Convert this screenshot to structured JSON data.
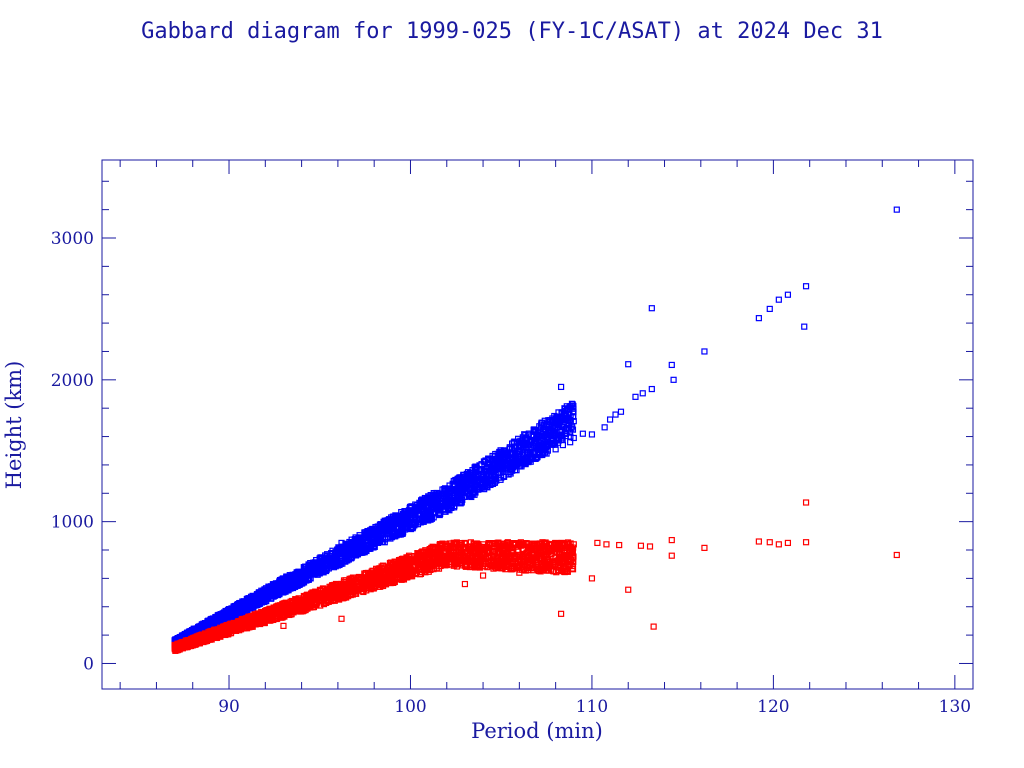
{
  "chart_data": {
    "type": "scatter",
    "title": "Gabbard diagram for 1999-025 (FY-1C/ASAT) at 2024 Dec 31",
    "xlabel": "Period (min)",
    "ylabel": "Height (km)",
    "xlim": [
      83,
      131
    ],
    "ylim": [
      -180,
      3550
    ],
    "xticks": [
      90,
      100,
      110,
      120,
      130
    ],
    "yticks": [
      0,
      1000,
      2000,
      3000
    ],
    "xtick_labels": [
      "90",
      "100",
      "110",
      "120",
      "130"
    ],
    "ytick_labels": [
      "0",
      "1000",
      "2000",
      "3000"
    ],
    "grid": false,
    "legend": "none",
    "colors": {
      "apogee": "#0000ff",
      "perigee": "#ff0000",
      "frame": "#1a1aa0"
    },
    "series": [
      {
        "key": "apogee",
        "color": "#0000ff",
        "points": [
          [
            87.0,
            140
          ],
          [
            87.4,
            160
          ],
          [
            87.8,
            185
          ],
          [
            88.1,
            210
          ],
          [
            88.4,
            235
          ],
          [
            88.7,
            255
          ],
          [
            89.0,
            275
          ],
          [
            89.3,
            300
          ],
          [
            89.7,
            320
          ],
          [
            90.1,
            345
          ],
          [
            90.6,
            370
          ],
          [
            91.0,
            395
          ],
          [
            91.5,
            420
          ],
          [
            92.0,
            450
          ],
          [
            92.5,
            480
          ],
          [
            93.0,
            510
          ],
          [
            93.2,
            610
          ],
          [
            93.5,
            540
          ],
          [
            94.0,
            570
          ],
          [
            94.5,
            600
          ],
          [
            95.0,
            635
          ],
          [
            95.5,
            670
          ],
          [
            96.0,
            705
          ],
          [
            96.2,
            850
          ],
          [
            96.5,
            740
          ],
          [
            97.0,
            775
          ],
          [
            97.5,
            810
          ],
          [
            98.0,
            845
          ],
          [
            98.5,
            880
          ],
          [
            99.0,
            915
          ],
          [
            99.5,
            950
          ],
          [
            100.0,
            985
          ],
          [
            100.5,
            1020
          ],
          [
            101.0,
            1055
          ],
          [
            101.5,
            1090
          ],
          [
            102.0,
            1120
          ],
          [
            102.5,
            1150
          ],
          [
            103.0,
            1175
          ],
          [
            103.5,
            1210
          ],
          [
            104.0,
            1240
          ],
          [
            104.5,
            1275
          ],
          [
            105.0,
            1310
          ],
          [
            105.5,
            1350
          ],
          [
            106.0,
            1390
          ],
          [
            106.5,
            1420
          ],
          [
            107.0,
            1455
          ],
          [
            107.5,
            1480
          ],
          [
            108.0,
            1510
          ],
          [
            108.4,
            1540
          ],
          [
            108.8,
            1560
          ],
          [
            108.3,
            1950
          ],
          [
            109.0,
            1590
          ],
          [
            109.5,
            1620
          ],
          [
            110.0,
            1615
          ],
          [
            110.7,
            1665
          ],
          [
            111.0,
            1720
          ],
          [
            111.3,
            1755
          ],
          [
            111.6,
            1775
          ],
          [
            112.0,
            2110
          ],
          [
            112.4,
            1880
          ],
          [
            112.8,
            1905
          ],
          [
            113.3,
            1935
          ],
          [
            113.3,
            2505
          ],
          [
            114.5,
            2000
          ],
          [
            114.4,
            2105
          ],
          [
            116.2,
            2200
          ],
          [
            119.2,
            2435
          ],
          [
            119.8,
            2500
          ],
          [
            120.3,
            2565
          ],
          [
            120.8,
            2600
          ],
          [
            121.7,
            2375
          ],
          [
            121.8,
            2660
          ],
          [
            126.8,
            3200
          ]
        ]
      },
      {
        "key": "perigee",
        "color": "#ff0000",
        "points": [
          [
            87.0,
            125
          ],
          [
            87.4,
            140
          ],
          [
            87.8,
            160
          ],
          [
            88.1,
            175
          ],
          [
            88.4,
            185
          ],
          [
            88.7,
            195
          ],
          [
            89.0,
            215
          ],
          [
            89.3,
            230
          ],
          [
            89.7,
            245
          ],
          [
            90.1,
            265
          ],
          [
            90.6,
            285
          ],
          [
            91.0,
            300
          ],
          [
            91.5,
            320
          ],
          [
            92.0,
            345
          ],
          [
            92.5,
            365
          ],
          [
            93.0,
            390
          ],
          [
            93.0,
            265
          ],
          [
            93.5,
            410
          ],
          [
            94.0,
            430
          ],
          [
            94.5,
            455
          ],
          [
            95.0,
            480
          ],
          [
            95.5,
            505
          ],
          [
            96.0,
            530
          ],
          [
            96.2,
            315
          ],
          [
            96.5,
            555
          ],
          [
            97.0,
            580
          ],
          [
            97.5,
            605
          ],
          [
            98.0,
            630
          ],
          [
            98.5,
            655
          ],
          [
            99.0,
            680
          ],
          [
            99.5,
            705
          ],
          [
            100.0,
            730
          ],
          [
            100.5,
            755
          ],
          [
            101.0,
            780
          ],
          [
            101.5,
            805
          ],
          [
            102.0,
            830
          ],
          [
            102.5,
            845
          ],
          [
            103.0,
            845
          ],
          [
            103.5,
            845
          ],
          [
            104.0,
            840
          ],
          [
            104.5,
            845
          ],
          [
            105.0,
            845
          ],
          [
            105.5,
            840
          ],
          [
            106.0,
            845
          ],
          [
            106.5,
            845
          ],
          [
            107.0,
            845
          ],
          [
            107.5,
            845
          ],
          [
            108.0,
            845
          ],
          [
            108.5,
            840
          ],
          [
            109.0,
            840
          ],
          [
            103.0,
            560
          ],
          [
            104.0,
            620
          ],
          [
            105.0,
            690
          ],
          [
            106.0,
            640
          ],
          [
            107.0,
            680
          ],
          [
            108.0,
            700
          ],
          [
            108.3,
            350
          ],
          [
            110.0,
            600
          ],
          [
            110.3,
            850
          ],
          [
            110.8,
            840
          ],
          [
            111.5,
            835
          ],
          [
            112.0,
            520
          ],
          [
            112.7,
            830
          ],
          [
            113.2,
            825
          ],
          [
            113.4,
            260
          ],
          [
            114.4,
            870
          ],
          [
            114.4,
            760
          ],
          [
            116.2,
            815
          ],
          [
            119.2,
            860
          ],
          [
            119.8,
            855
          ],
          [
            120.3,
            840
          ],
          [
            120.8,
            850
          ],
          [
            121.8,
            1135
          ],
          [
            121.8,
            855
          ],
          [
            126.8,
            765
          ]
        ]
      }
    ]
  }
}
